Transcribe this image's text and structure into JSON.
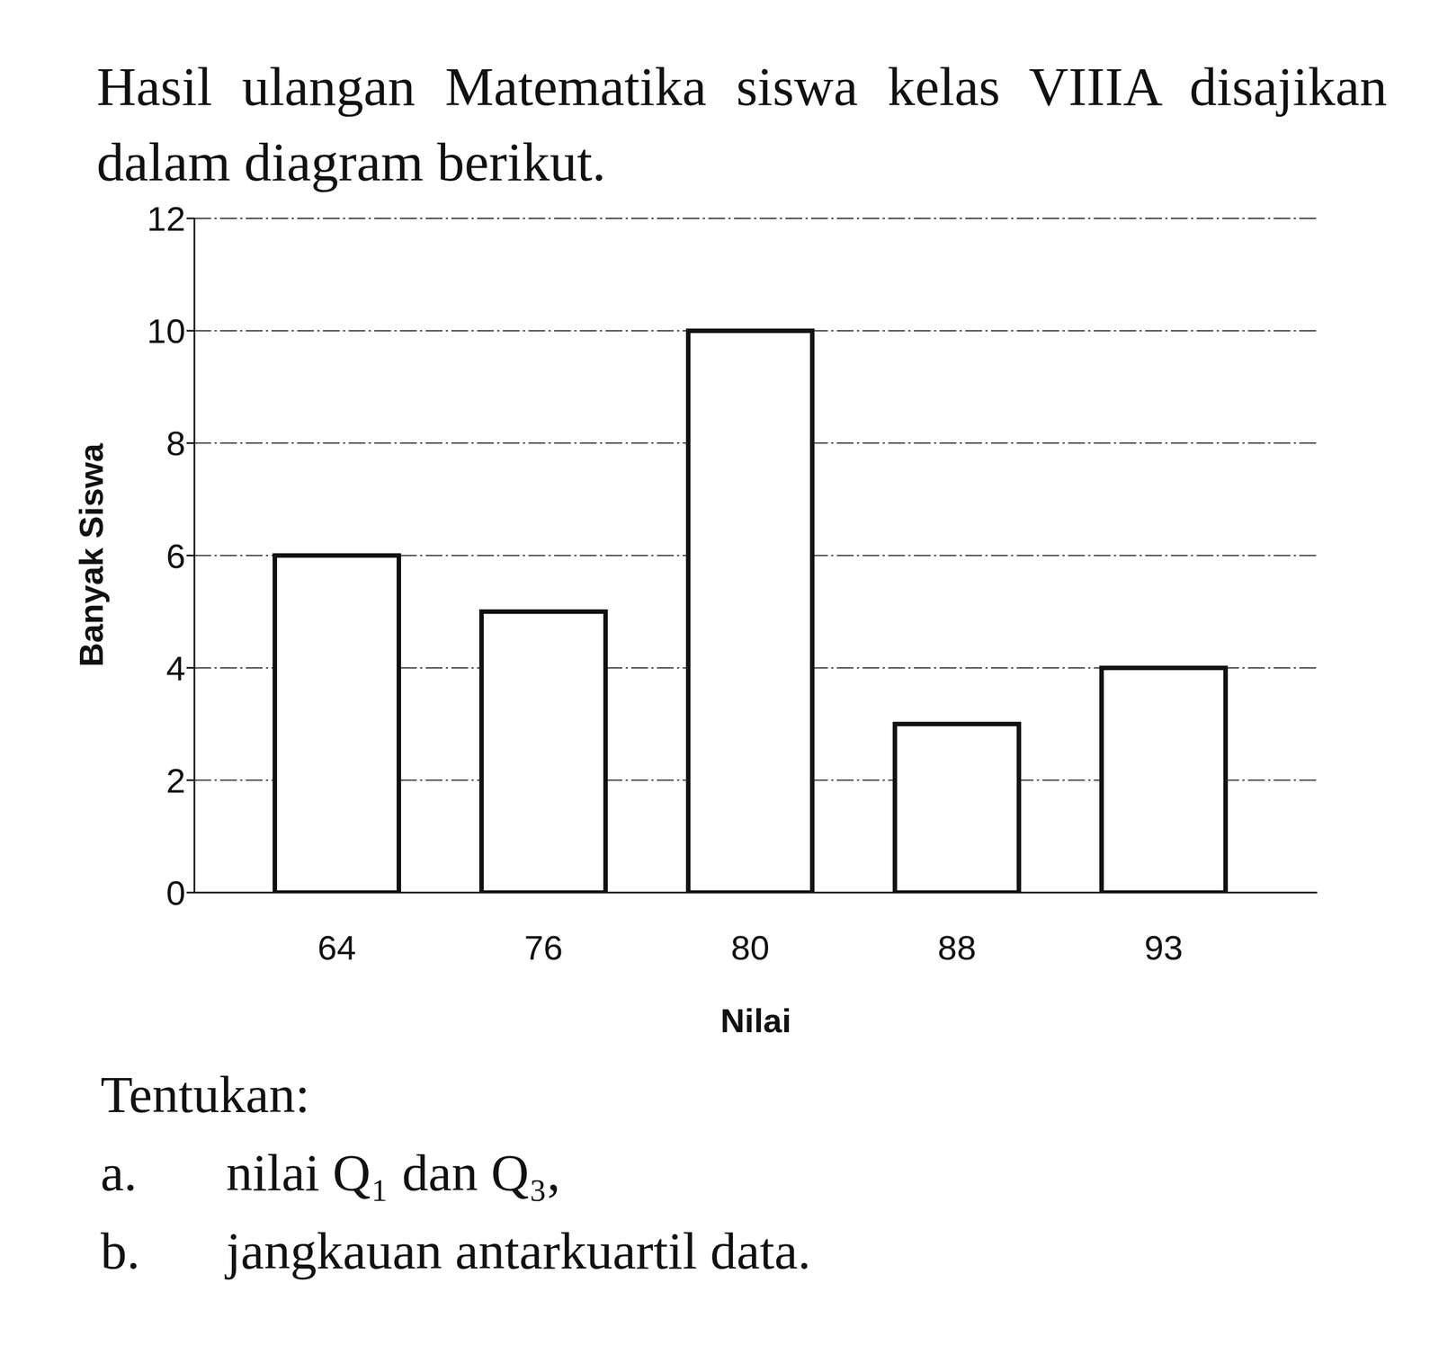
{
  "header": {
    "text": "Hasil ulangan Matematika siswa kelas VIIIA disajikan dalam diagram berikut."
  },
  "chart_data": {
    "type": "bar",
    "categories": [
      "64",
      "76",
      "80",
      "88",
      "93"
    ],
    "values": [
      6,
      5,
      10,
      3,
      4
    ],
    "color": "#ffffff",
    "xlabel": "Nilai",
    "ylabel": "Banyak Siswa",
    "ylim": [
      0,
      12
    ],
    "yticks": [
      0,
      2,
      4,
      6,
      8,
      10,
      12
    ],
    "grid": true
  },
  "questions": {
    "intro": "Tentukan:",
    "items": [
      {
        "label": "a.",
        "text": "nilai Q₁ dan Q₃,"
      },
      {
        "label": "b.",
        "text": "jangkauan antarkuartil data."
      }
    ]
  }
}
